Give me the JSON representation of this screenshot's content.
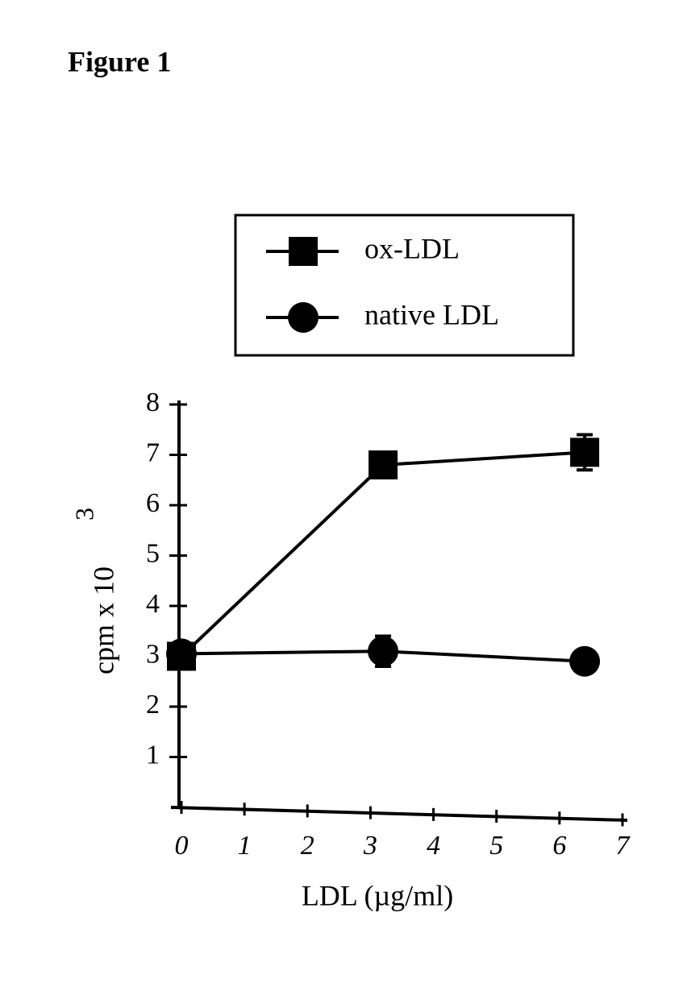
{
  "chart_data": {
    "type": "line",
    "title": "Figure 1",
    "x_label": "LDL (µg/ml)",
    "y_label": "cpm x 10",
    "y_label_exponent": "3",
    "x": [
      0,
      3.2,
      6.4
    ],
    "series": [
      {
        "name": "ox-LDL",
        "color": "#000000",
        "marker": "square",
        "values": [
          3.0,
          6.8,
          7.05
        ],
        "errors": [
          0.1,
          0.1,
          0.35
        ]
      },
      {
        "name": "native LDL",
        "color": "#000000",
        "marker": "circle",
        "values": [
          3.05,
          3.1,
          2.9
        ],
        "errors": [
          0.1,
          0.3,
          0.05
        ]
      }
    ],
    "xlim": [
      0,
      7
    ],
    "xticks": [
      0,
      1,
      2,
      3,
      4,
      5,
      6,
      7
    ],
    "ylim": [
      0,
      8
    ],
    "yticks": [
      1,
      2,
      3,
      4,
      5,
      6,
      7,
      8
    ],
    "grid": false
  }
}
